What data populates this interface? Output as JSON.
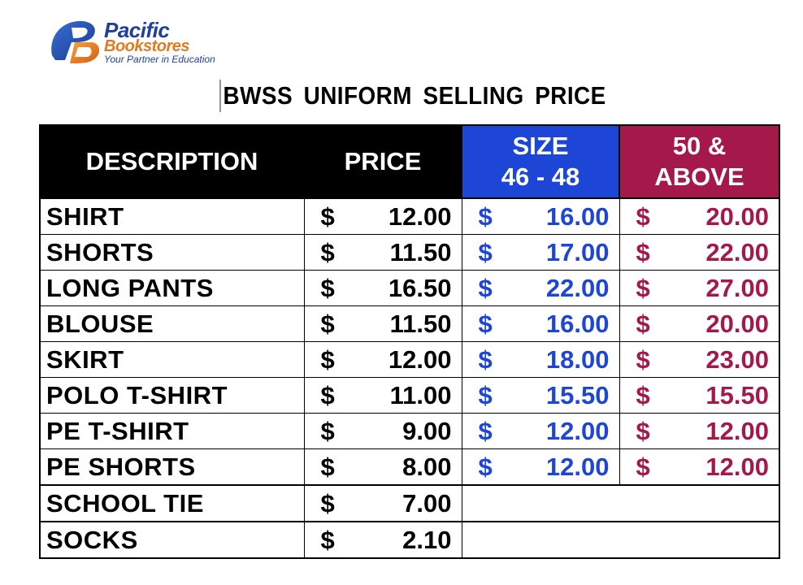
{
  "logo": {
    "line1": "Pacific",
    "line2": "Bookstores",
    "tagline": "Your Partner in Education",
    "colors": {
      "blue": "#1f3f9a",
      "orange": "#e27a1e"
    }
  },
  "title": "BWSS UNIFORM SELLING PRICE",
  "headers": {
    "description": "DESCRIPTION",
    "price": "PRICE",
    "size_line1": "SIZE",
    "size_line2": "46 - 48",
    "above_line1": "50 &",
    "above_line2": "ABOVE"
  },
  "colors": {
    "size_header": "#1d45d6",
    "above_header": "#a4184a"
  },
  "currency": "$",
  "rows": [
    {
      "description": "SHIRT",
      "price": "12.00",
      "size_46_48": "16.00",
      "size_50_above": "20.00"
    },
    {
      "description": "SHORTS",
      "price": "11.50",
      "size_46_48": "17.00",
      "size_50_above": "22.00"
    },
    {
      "description": "LONG PANTS",
      "price": "16.50",
      "size_46_48": "22.00",
      "size_50_above": "27.00"
    },
    {
      "description": "BLOUSE",
      "price": "11.50",
      "size_46_48": "16.00",
      "size_50_above": "20.00"
    },
    {
      "description": "SKIRT",
      "price": "12.00",
      "size_46_48": "18.00",
      "size_50_above": "23.00"
    },
    {
      "description": "POLO T-SHIRT",
      "price": "11.00",
      "size_46_48": "15.50",
      "size_50_above": "15.50"
    },
    {
      "description": "PE T-SHIRT",
      "price": "9.00",
      "size_46_48": "12.00",
      "size_50_above": "12.00"
    },
    {
      "description": "PE SHORTS",
      "price": "8.00",
      "size_46_48": "12.00",
      "size_50_above": "12.00"
    }
  ],
  "extra_rows": [
    {
      "description": "SCHOOL TIE",
      "price": "7.00"
    },
    {
      "description": "SOCKS",
      "price": "2.10"
    }
  ]
}
